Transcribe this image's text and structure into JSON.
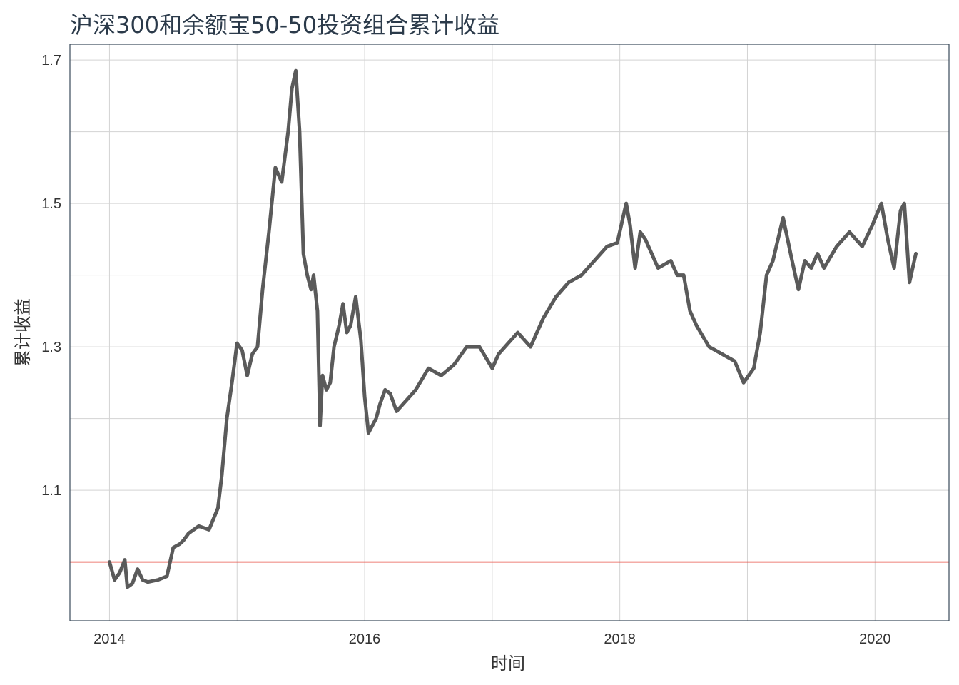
{
  "chart_data": {
    "type": "line",
    "title": "沪深300和余额宝50-50投资组合累计收益",
    "xlabel": "时间",
    "ylabel": "累计收益",
    "x_ticks": [
      "2014",
      "2016",
      "2018",
      "2020"
    ],
    "y_ticks": [
      "1.1",
      "1.3",
      "1.5",
      "1.7"
    ],
    "xlim": [
      2013.69,
      2020.58
    ],
    "ylim": [
      0.918,
      1.722
    ],
    "reference_line": {
      "y": 1.0,
      "color": "#e8584f"
    },
    "series": [
      {
        "name": "累计收益",
        "color": "#5a5a5a",
        "x": [
          2014.0,
          2014.04,
          2014.08,
          2014.12,
          2014.14,
          2014.18,
          2014.22,
          2014.26,
          2014.3,
          2014.38,
          2014.45,
          2014.5,
          2014.55,
          2014.58,
          2014.62,
          2014.7,
          2014.78,
          2014.85,
          2014.88,
          2014.92,
          2014.96,
          2015.0,
          2015.04,
          2015.08,
          2015.12,
          2015.16,
          2015.2,
          2015.25,
          2015.3,
          2015.35,
          2015.4,
          2015.43,
          2015.46,
          2015.49,
          2015.52,
          2015.55,
          2015.58,
          2015.6,
          2015.63,
          2015.65,
          2015.67,
          2015.7,
          2015.73,
          2015.76,
          2015.8,
          2015.83,
          2015.86,
          2015.89,
          2015.93,
          2015.97,
          2016.0,
          2016.03,
          2016.06,
          2016.09,
          2016.12,
          2016.16,
          2016.2,
          2016.25,
          2016.3,
          2016.4,
          2016.5,
          2016.6,
          2016.7,
          2016.8,
          2016.9,
          2017.0,
          2017.05,
          2017.1,
          2017.2,
          2017.3,
          2017.4,
          2017.5,
          2017.6,
          2017.7,
          2017.8,
          2017.9,
          2017.98,
          2018.05,
          2018.08,
          2018.12,
          2018.16,
          2018.2,
          2018.3,
          2018.4,
          2018.45,
          2018.5,
          2018.55,
          2018.6,
          2018.7,
          2018.8,
          2018.9,
          2018.97,
          2019.05,
          2019.1,
          2019.15,
          2019.2,
          2019.28,
          2019.35,
          2019.4,
          2019.45,
          2019.5,
          2019.55,
          2019.6,
          2019.7,
          2019.8,
          2019.9,
          2019.98,
          2020.05,
          2020.1,
          2020.15,
          2020.2,
          2020.23,
          2020.27,
          2020.32
        ],
        "y": [
          1.0,
          0.975,
          0.985,
          1.003,
          0.965,
          0.97,
          0.99,
          0.975,
          0.972,
          0.975,
          0.98,
          1.02,
          1.025,
          1.03,
          1.04,
          1.05,
          1.045,
          1.075,
          1.12,
          1.2,
          1.25,
          1.305,
          1.295,
          1.26,
          1.29,
          1.3,
          1.38,
          1.46,
          1.55,
          1.53,
          1.6,
          1.66,
          1.685,
          1.6,
          1.43,
          1.4,
          1.38,
          1.4,
          1.35,
          1.19,
          1.26,
          1.24,
          1.25,
          1.3,
          1.33,
          1.36,
          1.32,
          1.33,
          1.37,
          1.31,
          1.23,
          1.18,
          1.19,
          1.2,
          1.22,
          1.24,
          1.235,
          1.21,
          1.22,
          1.24,
          1.27,
          1.26,
          1.275,
          1.3,
          1.3,
          1.27,
          1.29,
          1.3,
          1.32,
          1.3,
          1.34,
          1.37,
          1.39,
          1.4,
          1.42,
          1.44,
          1.445,
          1.5,
          1.47,
          1.41,
          1.46,
          1.45,
          1.41,
          1.42,
          1.4,
          1.4,
          1.35,
          1.33,
          1.3,
          1.29,
          1.28,
          1.25,
          1.27,
          1.32,
          1.4,
          1.42,
          1.48,
          1.42,
          1.38,
          1.42,
          1.41,
          1.43,
          1.41,
          1.44,
          1.46,
          1.44,
          1.47,
          1.5,
          1.45,
          1.41,
          1.49,
          1.5,
          1.39,
          1.43
        ]
      }
    ]
  }
}
